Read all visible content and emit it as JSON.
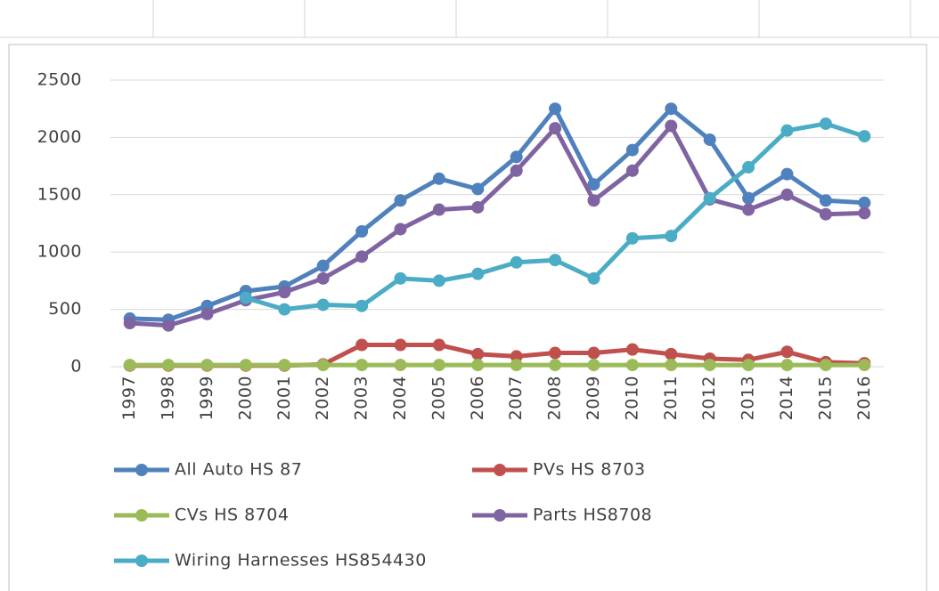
{
  "chart_data": {
    "type": "line",
    "categories": [
      "1997",
      "1998",
      "1999",
      "2000",
      "2001",
      "2002",
      "2003",
      "2004",
      "2005",
      "2006",
      "2007",
      "2008",
      "2009",
      "2010",
      "2011",
      "2012",
      "2013",
      "2014",
      "2015",
      "2016"
    ],
    "ylim": [
      0,
      2500
    ],
    "yticks": [
      0,
      500,
      1000,
      1500,
      2000,
      2500
    ],
    "grid": true,
    "legend": "bottom",
    "series": [
      {
        "name": "All Auto HS 87",
        "color": "#4f81bd",
        "values": [
          420,
          410,
          530,
          660,
          700,
          880,
          1180,
          1450,
          1640,
          1550,
          1830,
          2250,
          1590,
          1890,
          2250,
          1980,
          1470,
          1680,
          1450,
          1430
        ]
      },
      {
        "name": "PVs HS 8703",
        "color": "#c0504d",
        "values": [
          10,
          10,
          10,
          10,
          10,
          20,
          190,
          190,
          190,
          110,
          90,
          120,
          120,
          150,
          110,
          70,
          60,
          130,
          40,
          30
        ]
      },
      {
        "name": "CVs HS 8704",
        "color": "#9bbb59",
        "values": [
          15,
          15,
          15,
          15,
          15,
          15,
          15,
          15,
          15,
          15,
          15,
          15,
          15,
          15,
          15,
          15,
          15,
          15,
          15,
          15
        ]
      },
      {
        "name": "Parts HS8708",
        "color": "#8064a2",
        "values": [
          380,
          360,
          460,
          580,
          650,
          770,
          960,
          1200,
          1370,
          1390,
          1710,
          2080,
          1450,
          1710,
          2100,
          1460,
          1370,
          1500,
          1330,
          1340
        ]
      },
      {
        "name": "Wiring Harnesses HS854430",
        "color": "#4bacc6",
        "values": [
          null,
          null,
          null,
          600,
          500,
          540,
          530,
          770,
          750,
          810,
          910,
          930,
          770,
          1120,
          1140,
          1470,
          1740,
          2060,
          2120,
          2010
        ]
      }
    ]
  }
}
